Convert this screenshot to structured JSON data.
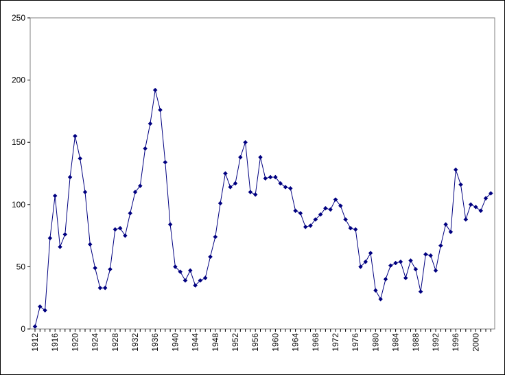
{
  "chart_data": {
    "type": "line",
    "title": "",
    "xlabel": "",
    "ylabel": "",
    "ylim": [
      0,
      250
    ],
    "y_ticks": [
      0,
      50,
      100,
      150,
      200,
      250
    ],
    "x_tick_labels": [
      "1912",
      "1916",
      "1920",
      "1924",
      "1928",
      "1932",
      "1936",
      "1940",
      "1944",
      "1948",
      "1952",
      "1956",
      "1960",
      "1964",
      "1968",
      "1972",
      "1976",
      "1980",
      "1984",
      "1988",
      "1992",
      "1996",
      "2000"
    ],
    "grid": false,
    "legend": "none",
    "series": [
      {
        "color": "#000080",
        "marker": "diamond",
        "x": [
          1912,
          1913,
          1914,
          1915,
          1916,
          1917,
          1918,
          1919,
          1920,
          1921,
          1922,
          1923,
          1924,
          1925,
          1926,
          1927,
          1928,
          1929,
          1930,
          1931,
          1932,
          1933,
          1934,
          1935,
          1936,
          1937,
          1938,
          1939,
          1940,
          1941,
          1942,
          1943,
          1944,
          1945,
          1946,
          1947,
          1948,
          1949,
          1950,
          1951,
          1952,
          1953,
          1954,
          1955,
          1956,
          1957,
          1958,
          1959,
          1960,
          1961,
          1962,
          1963,
          1964,
          1965,
          1966,
          1967,
          1968,
          1969,
          1970,
          1971,
          1972,
          1973,
          1974,
          1975,
          1976,
          1977,
          1978,
          1979,
          1980,
          1981,
          1982,
          1983,
          1984,
          1985,
          1986,
          1987,
          1988,
          1989,
          1990,
          1991,
          1992,
          1993,
          1994,
          1995,
          1996,
          1997,
          1998,
          1999,
          2000,
          2001,
          2002,
          2003
        ],
        "y": [
          2,
          18,
          15,
          73,
          107,
          66,
          76,
          122,
          155,
          137,
          110,
          68,
          49,
          33,
          33,
          48,
          80,
          81,
          75,
          93,
          110,
          115,
          145,
          165,
          192,
          176,
          134,
          84,
          50,
          46,
          39,
          47,
          35,
          39,
          41,
          58,
          74,
          101,
          125,
          114,
          117,
          138,
          150,
          110,
          108,
          138,
          121,
          122,
          122,
          117,
          114,
          113,
          95,
          93,
          82,
          83,
          88,
          92,
          97,
          96,
          104,
          99,
          88,
          81,
          80,
          50,
          54,
          61,
          31,
          24,
          40,
          51,
          53,
          54,
          41,
          55,
          48,
          30,
          60,
          59,
          47,
          67,
          84,
          78,
          128,
          116,
          88,
          100,
          98,
          95,
          105,
          109
        ]
      }
    ]
  }
}
